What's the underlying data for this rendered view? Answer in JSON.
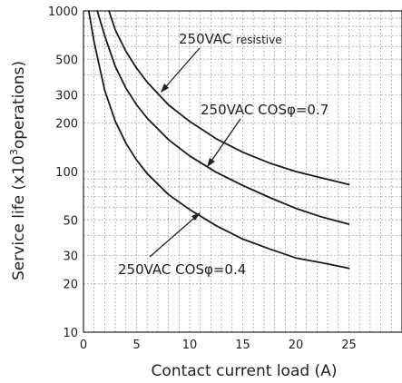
{
  "chart_data": {
    "type": "line",
    "ylabel_main": "Service life (x10",
    "ylabel_sup": "3",
    "ylabel_tail": "operations)",
    "xlabel": "Contact current load (A)",
    "xlim": [
      0,
      30
    ],
    "ylim": [
      10,
      1000
    ],
    "y_scale": "log",
    "x_ticks": [
      0,
      5,
      10,
      15,
      20,
      25
    ],
    "x_tick_labels": [
      "0",
      "5",
      "10",
      "15",
      "20",
      "25"
    ],
    "y_ticks": [
      10,
      20,
      30,
      50,
      100,
      200,
      300,
      500,
      1000
    ],
    "y_tick_labels": [
      "10",
      "20",
      "30",
      "50",
      "100",
      "200",
      "300",
      "500",
      "1000"
    ],
    "grid": true,
    "series": [
      {
        "name_main": "250VAC ",
        "name_small": "resistive",
        "x": [
          2.4,
          3,
          4,
          5,
          6,
          8,
          10,
          12.5,
          15,
          17.5,
          20,
          22.5,
          25
        ],
        "y": [
          1000,
          760,
          560,
          440,
          360,
          260,
          205,
          160,
          132,
          113,
          100,
          91,
          83
        ]
      },
      {
        "name_main": "250VAC COSφ=0.7",
        "name_small": "",
        "x": [
          1.3,
          2,
          3,
          4,
          5,
          6,
          8,
          10,
          12.5,
          15,
          17.5,
          20,
          22.5,
          25
        ],
        "y": [
          1000,
          700,
          450,
          330,
          260,
          215,
          158,
          125,
          99,
          82,
          69,
          59,
          52,
          47
        ]
      },
      {
        "name_main": "250VAC COSφ=0.4",
        "name_small": "",
        "x": [
          0.5,
          1,
          2,
          3,
          4,
          5,
          6,
          8,
          10,
          12.5,
          15,
          17.5,
          20,
          22.5,
          25
        ],
        "y": [
          1000,
          640,
          320,
          205,
          150,
          118,
          97,
          72,
          58,
          46,
          38,
          33,
          29,
          27,
          25
        ]
      }
    ]
  }
}
